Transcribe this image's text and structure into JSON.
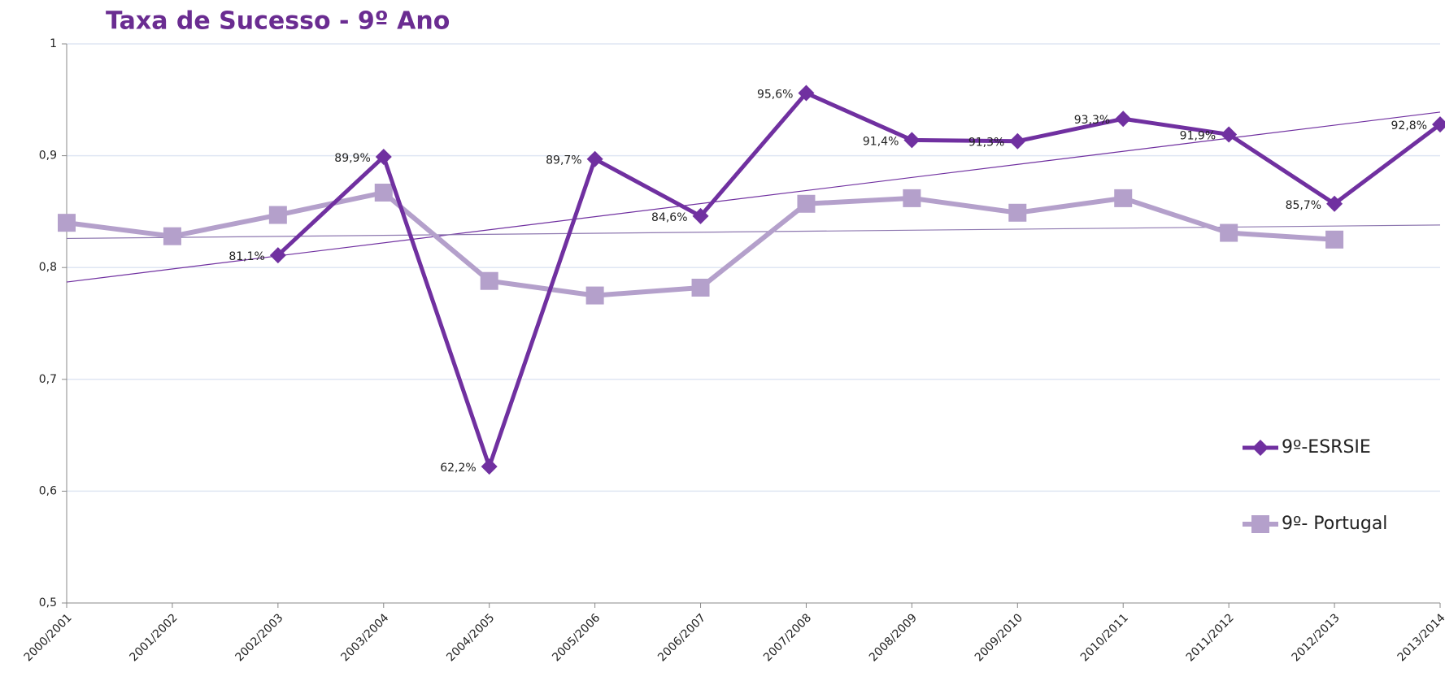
{
  "chart_data": {
    "type": "line",
    "title": "Taxa de Sucesso - 9º Ano",
    "categories": [
      "2000/2001",
      "2001/2002",
      "2002/2003",
      "2003/2004",
      "2004/2005",
      "2005/2006",
      "2006/2007",
      "2007/2008",
      "2008/2009",
      "2009/2010",
      "2010/2011",
      "2011/2012",
      "2012/2013",
      "2013/2014"
    ],
    "series": [
      {
        "name": "9º-ESRSIE",
        "color": "#7030a0",
        "marker": "diamond",
        "values": [
          null,
          null,
          0.811,
          0.899,
          0.622,
          0.897,
          0.846,
          0.956,
          0.914,
          0.913,
          0.933,
          0.919,
          0.857,
          0.928
        ],
        "value_labels": [
          null,
          null,
          "81,1%",
          "89,9%",
          "62,2%",
          "89,7%",
          "84,6%",
          "95,6%",
          "91,4%",
          "91,3%",
          "93,3%",
          "91,9%",
          "85,7%",
          "92,8%"
        ]
      },
      {
        "name": "9º- Portugal",
        "color": "#b4a0cb",
        "marker": "square",
        "values": [
          0.84,
          0.828,
          0.847,
          0.867,
          0.788,
          0.775,
          0.782,
          0.857,
          0.862,
          0.849,
          0.862,
          0.831,
          0.825,
          null
        ]
      }
    ],
    "trendlines": [
      {
        "color": "#7030a0",
        "values": [
          0.787,
          0.939
        ]
      },
      {
        "color": "#8e78b0",
        "values": [
          0.826,
          0.838
        ]
      }
    ],
    "ylim": [
      0.5,
      1
    ],
    "yticks": [
      {
        "value": 0.5,
        "label": "0,5"
      },
      {
        "value": 0.6,
        "label": "0,6"
      },
      {
        "value": 0.7,
        "label": "0,7"
      },
      {
        "value": 0.8,
        "label": "0,8"
      },
      {
        "value": 0.9,
        "label": "0,9"
      },
      1
    ],
    "grid": true,
    "legend": "right"
  }
}
